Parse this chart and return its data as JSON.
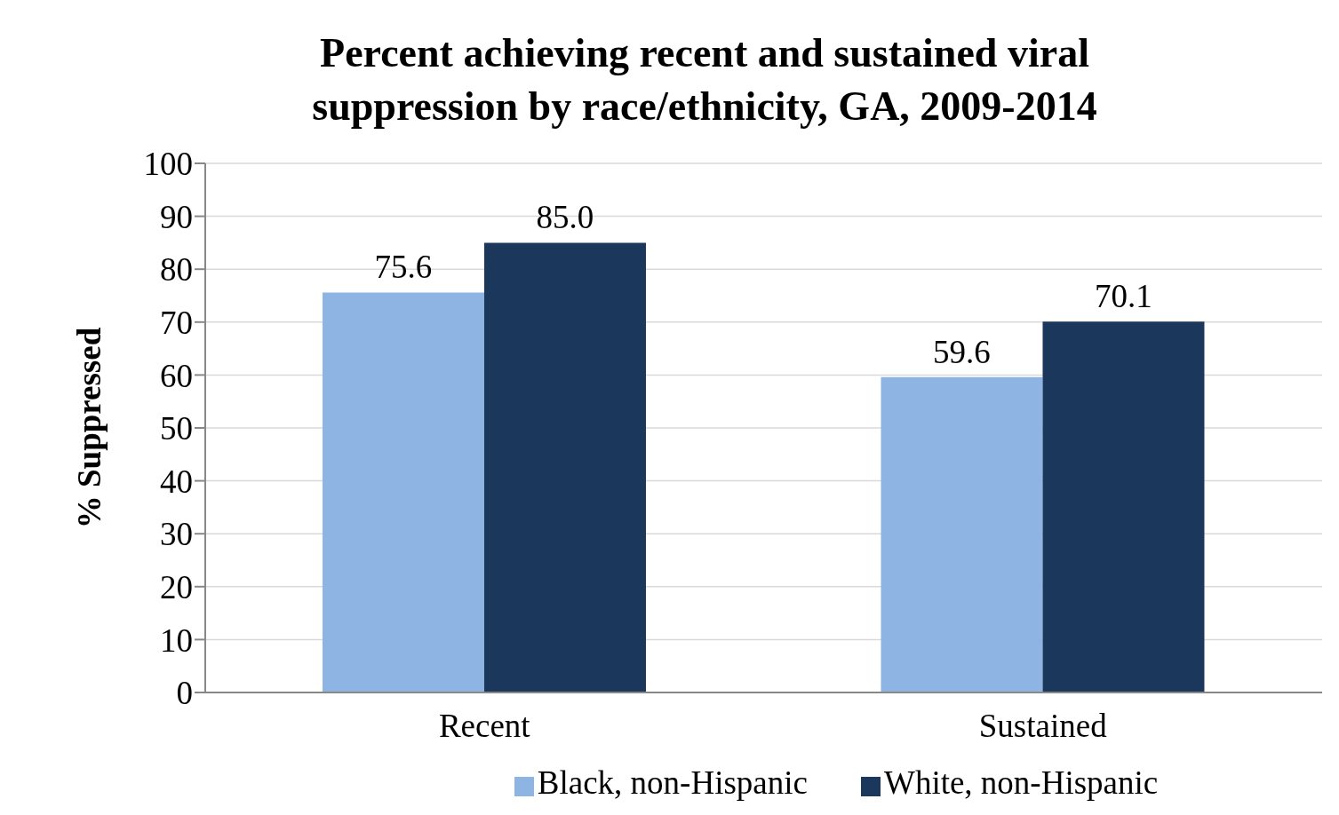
{
  "chart_data": {
    "type": "bar",
    "title": "Percent achieving recent and sustained viral suppression by race/ethnicity, GA, 2009-2014",
    "ylabel": "% Suppressed",
    "categories": [
      "Recent",
      "Sustained"
    ],
    "series": [
      {
        "name": "Black, non-Hispanic",
        "color": "#8eb4e3",
        "values": [
          75.6,
          59.6
        ],
        "value_labels": [
          "75.6",
          "59.6"
        ]
      },
      {
        "name": "White, non-Hispanic",
        "color": "#1b385c",
        "values": [
          85.0,
          70.1
        ],
        "value_labels": [
          "85.0",
          "70.1"
        ]
      }
    ],
    "ylim": [
      0,
      100
    ],
    "yticks": [
      0,
      10,
      20,
      30,
      40,
      50,
      60,
      70,
      80,
      90,
      100
    ],
    "grid": "y",
    "legend": "bottom"
  }
}
